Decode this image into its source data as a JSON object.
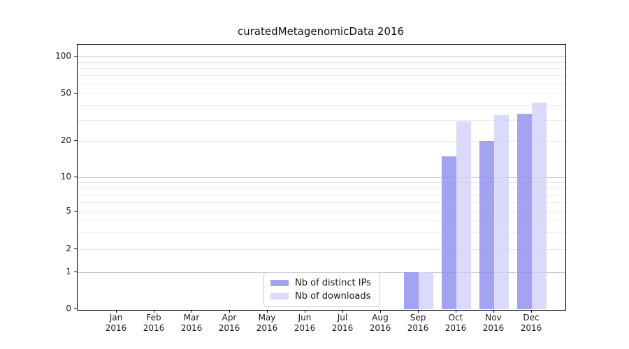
{
  "title": "curatedMetagenomicData 2016",
  "chart_data": {
    "type": "bar",
    "title": "curatedMetagenomicData 2016",
    "categories": [
      "Jan",
      "Feb",
      "Mar",
      "Apr",
      "May",
      "Jun",
      "Jul",
      "Aug",
      "Sep",
      "Oct",
      "Nov",
      "Dec"
    ],
    "x_year_label": "2016",
    "series": [
      {
        "name": "Nb of distinct IPs",
        "color": "rgba(143,143,242,0.82)",
        "values": [
          0,
          0,
          0,
          0,
          0,
          0,
          0,
          0,
          1,
          15,
          20,
          34
        ]
      },
      {
        "name": "Nb of downloads",
        "color": "rgba(206,206,250,0.75)",
        "values": [
          0,
          0,
          0,
          0,
          0,
          0,
          0,
          0,
          1,
          29,
          33,
          42
        ]
      }
    ],
    "xlabel": "",
    "ylabel": "",
    "yscale": "symlog",
    "ylim": [
      0,
      140
    ],
    "yticks": [
      0,
      1,
      2,
      5,
      10,
      20,
      50,
      100
    ],
    "major_gridlines": [
      1,
      10,
      100
    ],
    "labeled_light_gridlines": [
      2,
      5,
      20,
      50
    ],
    "minor_gridlines": [
      3,
      4,
      6,
      7,
      8,
      9,
      30,
      40,
      60,
      70,
      80,
      90
    ],
    "grid": true,
    "legend_position": "lower center"
  },
  "colors": {
    "background": "#ffffff",
    "axis": "#000000",
    "grid_major": "#c6c6c6",
    "grid_minor": "#eaeaea",
    "text": "#1a1a1a",
    "legend_border": "#cccccc"
  }
}
